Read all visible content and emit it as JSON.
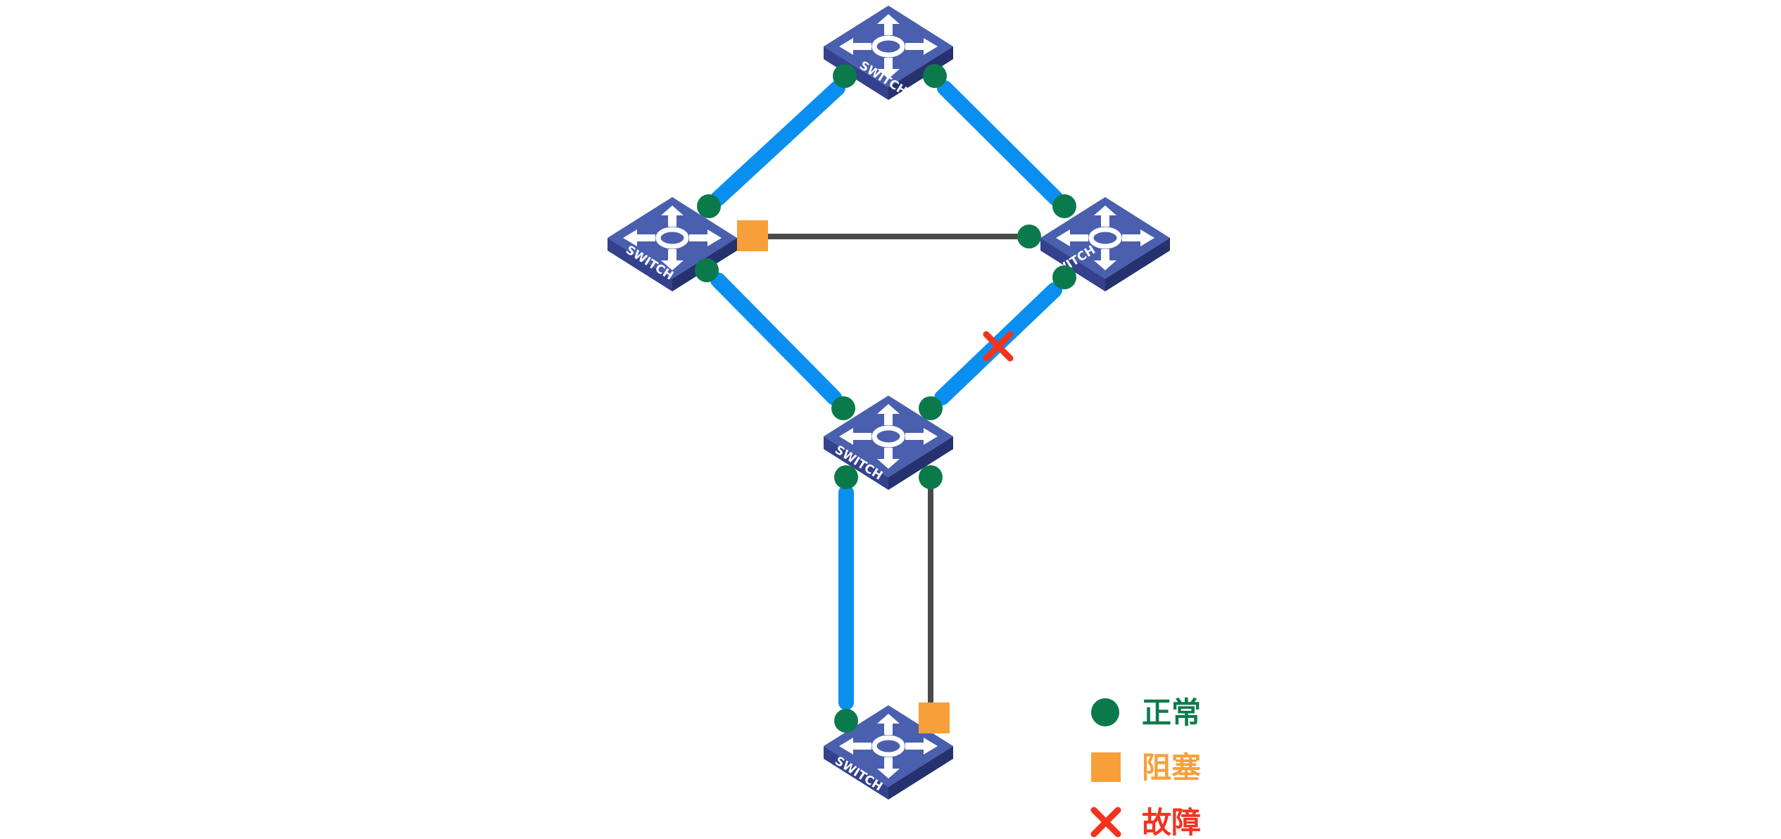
{
  "switches": [
    {
      "id": "top",
      "label": "SWITCH"
    },
    {
      "id": "left",
      "label": "SWITCH"
    },
    {
      "id": "right",
      "label": "SWITCH"
    },
    {
      "id": "center",
      "label": "SWITCH"
    },
    {
      "id": "bottom",
      "label": "SWITCH"
    }
  ],
  "links": [
    {
      "id": "top-left",
      "state": "forwarding"
    },
    {
      "id": "top-right",
      "state": "forwarding"
    },
    {
      "id": "left-right",
      "state": "blocked"
    },
    {
      "id": "left-center",
      "state": "forwarding"
    },
    {
      "id": "right-center",
      "state": "fault"
    },
    {
      "id": "center-bottom-a",
      "state": "forwarding"
    },
    {
      "id": "center-bottom-b",
      "state": "blocked"
    }
  ],
  "legend": {
    "normal": {
      "label": "正常",
      "color": "#0b7a4b"
    },
    "blocked": {
      "label": "阻塞",
      "color": "#f7a039"
    },
    "fault": {
      "label": "故障",
      "color": "#f2331f"
    }
  },
  "colors": {
    "link_active": "#0a8ff0",
    "link_blocked": "#4a4a4a",
    "port_normal": "#0b7a4b",
    "port_blocked": "#f7a039",
    "fault_mark": "#f2331f",
    "switch_top": "#4a5fae",
    "switch_side": "#2a3575"
  }
}
